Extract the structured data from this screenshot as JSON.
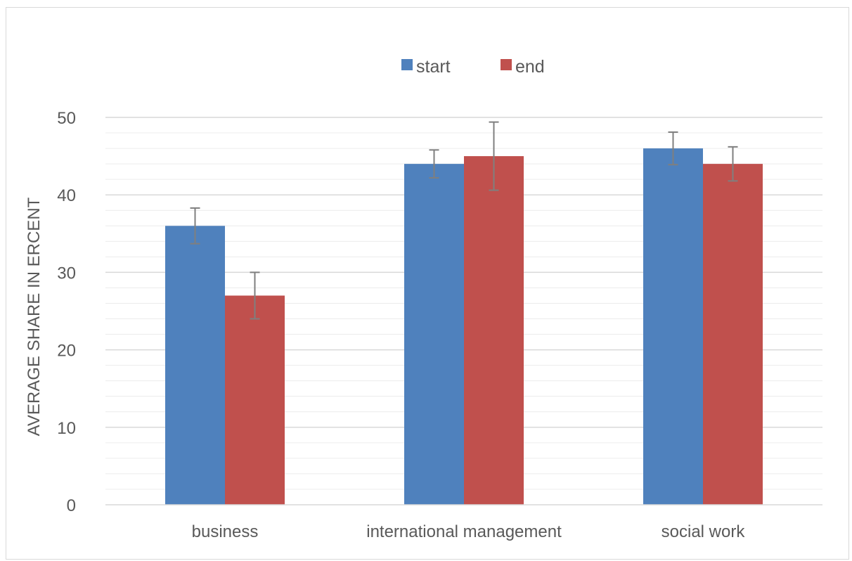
{
  "chart_data": {
    "type": "bar",
    "title": "",
    "xlabel": "",
    "ylabel": "AVERAGE SHARE IN ERCENT",
    "ylim": [
      0,
      50
    ],
    "yticks": [
      0,
      10,
      20,
      30,
      40,
      50
    ],
    "minor_gridline_step": 2,
    "grid": true,
    "legend_position": "top-center",
    "categories": [
      "business",
      "international management",
      "social work"
    ],
    "series": [
      {
        "name": "start",
        "color": "#4f81bd",
        "values": [
          36,
          44,
          46
        ],
        "error": [
          2.3,
          1.8,
          2.1
        ]
      },
      {
        "name": "end",
        "color": "#c0504d",
        "values": [
          27,
          45,
          44
        ],
        "error": [
          3.0,
          4.4,
          2.2
        ]
      }
    ],
    "error_bar_color": "#7f7f7f"
  }
}
